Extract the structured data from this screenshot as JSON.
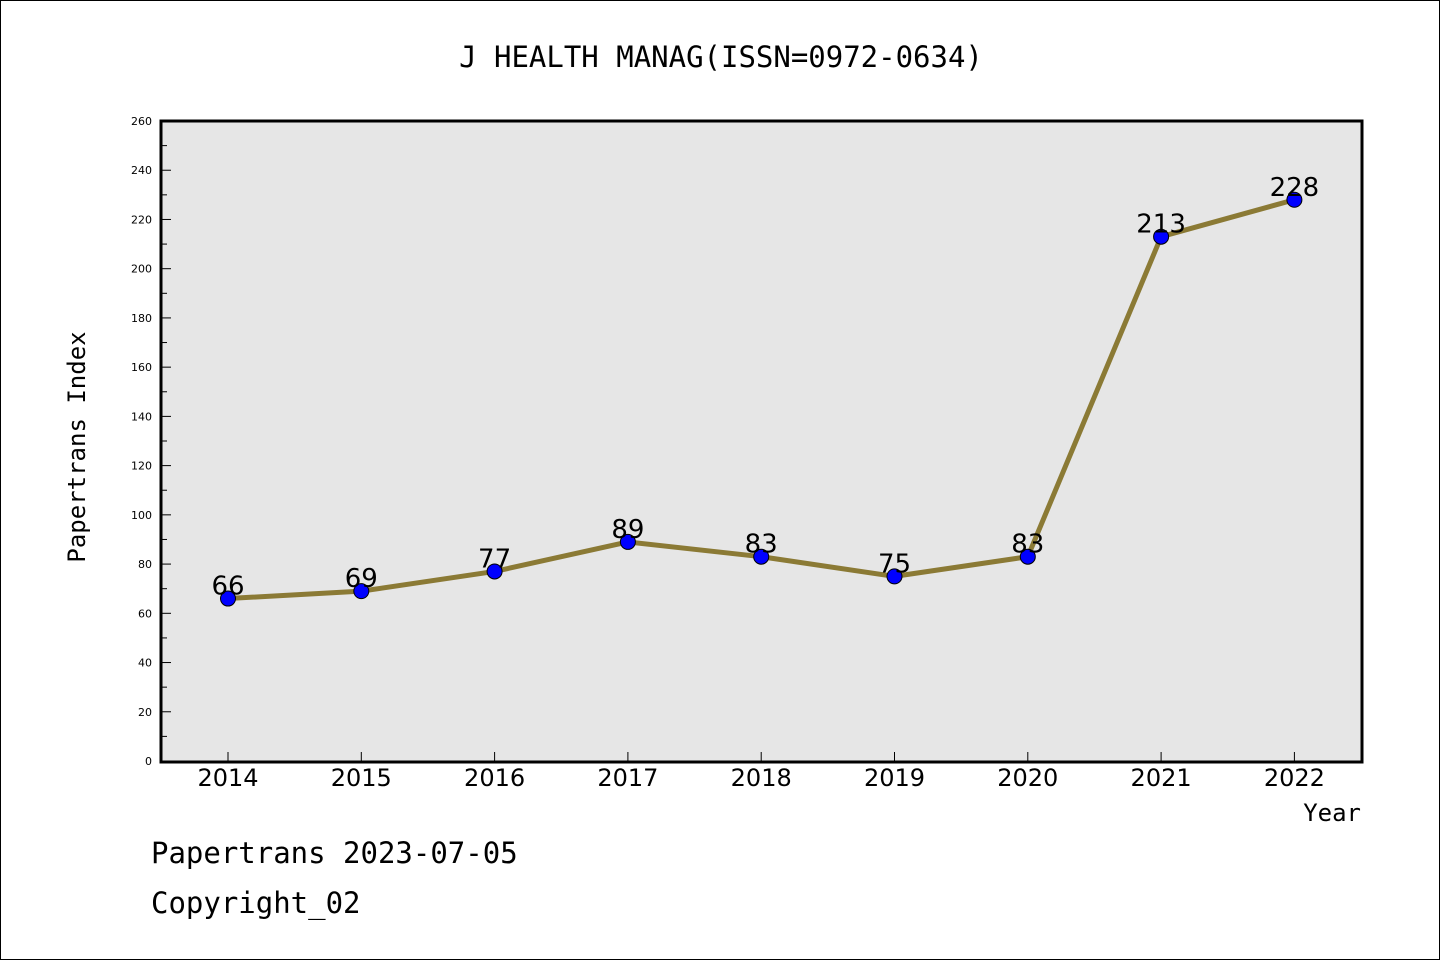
{
  "chart_data": {
    "type": "line",
    "title": "J HEALTH MANAG(ISSN=0972-0634)",
    "xlabel": "Year",
    "ylabel": "Papertrans Index",
    "categories": [
      "2014",
      "2015",
      "2016",
      "2017",
      "2018",
      "2019",
      "2020",
      "2021",
      "2022"
    ],
    "series": [
      {
        "values": [
          66,
          69,
          77,
          89,
          83,
          75,
          83,
          213,
          228
        ]
      }
    ],
    "data_labels": [
      "66",
      "69",
      "77",
      "89",
      "83",
      "75",
      "83",
      "213",
      "228"
    ],
    "ylim": [
      0,
      260
    ],
    "yticks": [
      "0",
      "20",
      "40",
      "60",
      "80",
      "100",
      "120",
      "140",
      "160",
      "180",
      "200",
      "220",
      "240",
      "260"
    ],
    "grid": false,
    "legend": "none",
    "colors": {
      "line": "#8b7a35",
      "marker": "#0000ff",
      "plot_background": "#e6e6e6"
    }
  },
  "footer": {
    "line1": "Papertrans 2023-07-05",
    "line2": "Copyright_02"
  }
}
